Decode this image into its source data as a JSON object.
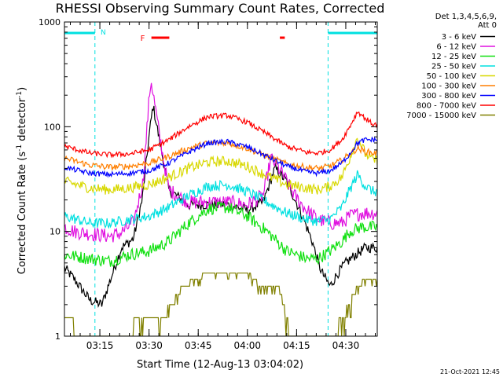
{
  "chart_data": {
    "type": "line",
    "title": "RHESSI Observing Summary Count Rates, Corrected",
    "xlabel": "Start Time (12-Aug-13 03:04:02)",
    "ylabel_main": "Corrected Count Rate (s",
    "ylabel_sup1": "-1",
    "ylabel_mid": " detector",
    "ylabel_sup2": "-1",
    "ylabel_end": ")",
    "yscale": "log",
    "ylim": [
      1,
      1000
    ],
    "xlim_minutes": [
      3.07,
      4.66
    ],
    "x_ticks": [
      {
        "label": "03:15",
        "min": 3.25
      },
      {
        "label": "03:30",
        "min": 3.5
      },
      {
        "label": "03:45",
        "min": 3.75
      },
      {
        "label": "04:00",
        "min": 4.0
      },
      {
        "label": "04:15",
        "min": 4.25
      },
      {
        "label": "04:30",
        "min": 4.5
      }
    ],
    "y_ticks": [
      {
        "label": "1",
        "value": 1
      },
      {
        "label": "10",
        "value": 10
      },
      {
        "label": "100",
        "value": 100
      },
      {
        "label": "1000",
        "value": 1000
      }
    ],
    "legend_header": [
      "Det 1,3,4,5,6,9,",
      "Att 0"
    ],
    "legend_position": "right",
    "night_intervals_hours": [
      [
        3.07,
        3.225
      ],
      [
        4.41,
        4.66
      ]
    ],
    "night_label": "N",
    "flare_label": "F",
    "flare_intervals_hours": [
      [
        3.512,
        3.603
      ],
      [
        4.165,
        4.19
      ]
    ],
    "series": [
      {
        "name": "3 - 6 keV",
        "color": "#000000",
        "x": [
          3.07,
          3.12,
          3.2,
          3.26,
          3.36,
          3.42,
          3.465,
          3.5,
          3.52,
          3.55,
          3.6,
          3.7,
          3.8,
          3.9,
          4.0,
          4.08,
          4.14,
          4.2,
          4.28,
          4.33,
          4.36,
          4.38,
          4.42,
          4.46,
          4.5,
          4.55,
          4.6,
          4.64
        ],
        "y": [
          4.5,
          3.5,
          2.2,
          2.0,
          7,
          8.5,
          20,
          80,
          160,
          80,
          25,
          18,
          18,
          18,
          16,
          19,
          40,
          30,
          14,
          8,
          5,
          4,
          3,
          4,
          5,
          6,
          7,
          7
        ]
      },
      {
        "name": "6 - 12 keV",
        "color": "#e010e0",
        "x": [
          3.07,
          3.12,
          3.2,
          3.3,
          3.35,
          3.42,
          3.47,
          3.5,
          3.51,
          3.53,
          3.55,
          3.6,
          3.7,
          3.8,
          3.9,
          4.0,
          4.08,
          4.12,
          4.18,
          4.24,
          4.3,
          4.36,
          4.42,
          4.48,
          4.52,
          4.58,
          4.64
        ],
        "y": [
          11,
          10,
          9.5,
          9,
          9.5,
          12,
          30,
          180,
          280,
          160,
          90,
          25,
          19,
          19,
          19,
          18,
          22,
          50,
          35,
          22,
          16,
          13,
          12,
          12,
          14,
          15,
          15
        ]
      },
      {
        "name": "12 - 25 keV",
        "color": "#10e010",
        "x": [
          3.07,
          3.2,
          3.3,
          3.4,
          3.5,
          3.6,
          3.7,
          3.8,
          3.9,
          4.0,
          4.1,
          4.2,
          4.3,
          4.36,
          4.42,
          4.48,
          4.52,
          4.58,
          4.64
        ],
        "y": [
          6,
          5.5,
          5.2,
          6,
          6.5,
          8,
          12,
          16.5,
          17,
          14,
          10,
          6.5,
          5.5,
          5.5,
          6.5,
          8,
          10,
          11,
          11
        ]
      },
      {
        "name": "25 - 50 keV",
        "color": "#00e0e0",
        "x": [
          3.07,
          3.2,
          3.3,
          3.4,
          3.5,
          3.6,
          3.7,
          3.8,
          3.9,
          4.0,
          4.1,
          4.2,
          4.3,
          4.36,
          4.42,
          4.48,
          4.52,
          4.56,
          4.6,
          4.64
        ],
        "y": [
          14,
          12,
          12,
          13,
          14,
          17,
          22,
          27,
          28,
          24,
          19,
          15,
          13,
          12.5,
          13,
          17,
          25,
          35,
          27,
          24
        ]
      },
      {
        "name": "50 - 100 keV",
        "color": "#d8d800",
        "x": [
          3.07,
          3.2,
          3.3,
          3.4,
          3.5,
          3.6,
          3.7,
          3.8,
          3.9,
          4.0,
          4.1,
          4.2,
          4.3,
          4.36,
          4.42,
          4.48,
          4.52,
          4.56,
          4.6,
          4.64
        ],
        "y": [
          30,
          26,
          25,
          26,
          28,
          33,
          40,
          46,
          47,
          42,
          34,
          28,
          26,
          25,
          27,
          33,
          50,
          80,
          55,
          48
        ]
      },
      {
        "name": "100 - 300 keV",
        "color": "#ff7f00",
        "x": [
          3.07,
          3.2,
          3.3,
          3.4,
          3.5,
          3.6,
          3.7,
          3.8,
          3.9,
          4.0,
          4.1,
          4.2,
          4.3,
          4.36,
          4.42,
          4.48,
          4.52,
          4.56,
          4.6,
          4.64
        ],
        "y": [
          50,
          43,
          41,
          42,
          45,
          52,
          62,
          70,
          70,
          62,
          52,
          44,
          41,
          40,
          42,
          48,
          55,
          62,
          58,
          56
        ]
      },
      {
        "name": "300 - 800 keV",
        "color": "#0000ff",
        "x": [
          3.07,
          3.2,
          3.3,
          3.4,
          3.5,
          3.6,
          3.7,
          3.8,
          3.9,
          4.0,
          4.1,
          4.2,
          4.3,
          4.36,
          4.42,
          4.48,
          4.52,
          4.56,
          4.6,
          4.64
        ],
        "y": [
          41,
          36,
          35,
          36,
          38,
          45,
          57,
          70,
          72,
          64,
          52,
          42,
          37,
          36,
          38,
          45,
          55,
          70,
          75,
          75
        ]
      },
      {
        "name": "800 - 7000 keV",
        "color": "#ff0000",
        "x": [
          3.07,
          3.2,
          3.3,
          3.4,
          3.5,
          3.6,
          3.7,
          3.8,
          3.9,
          4.0,
          4.1,
          4.2,
          4.3,
          4.36,
          4.42,
          4.48,
          4.52,
          4.56,
          4.6,
          4.64
        ],
        "y": [
          65,
          56,
          54,
          55,
          60,
          75,
          100,
          125,
          128,
          110,
          85,
          65,
          57,
          56,
          60,
          75,
          100,
          140,
          120,
          105
        ]
      },
      {
        "name": "7000 - 15000 keV",
        "color": "#808000",
        "x": [
          3.07,
          3.1,
          3.12,
          3.14,
          3.16,
          3.2,
          3.22,
          3.24,
          3.3,
          3.36,
          3.4,
          3.44,
          3.5,
          3.56,
          3.62,
          3.66,
          3.7,
          3.8,
          3.9,
          4.0,
          4.04,
          4.06,
          4.1,
          4.12,
          4.16,
          4.22,
          4.3,
          4.36,
          4.4,
          4.44,
          4.48,
          4.52,
          4.56,
          4.6,
          4.64
        ],
        "y": [
          1.5,
          1.6,
          1.2,
          1.0,
          1.0,
          1.0,
          1.0,
          1.0,
          1.0,
          1.0,
          1.0,
          1.5,
          1.5,
          1.5,
          2.0,
          2.8,
          3.2,
          4.0,
          4.2,
          4.0,
          3.5,
          3.0,
          3.0,
          3.0,
          3.0,
          1.0,
          1.0,
          1.0,
          1.0,
          1.0,
          1.5,
          2.0,
          3.0,
          3.5,
          3.5
        ]
      }
    ]
  },
  "footer": {
    "timestamp": "21-Oct-2021 12:45"
  }
}
